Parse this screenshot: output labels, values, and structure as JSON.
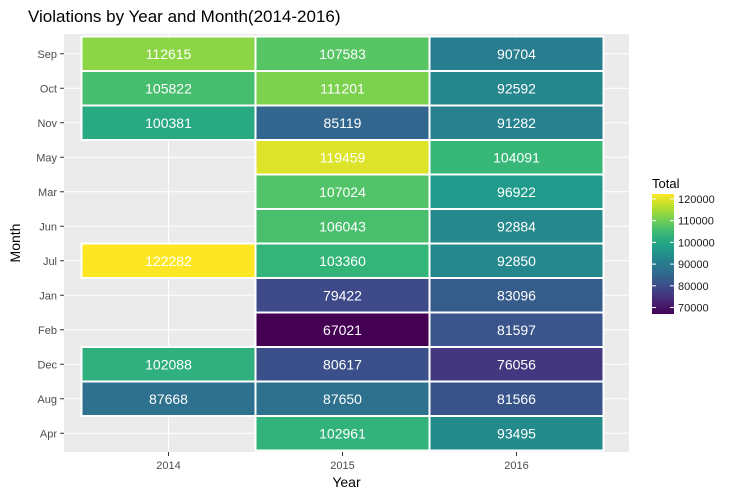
{
  "chart_data": {
    "type": "heatmap",
    "title": "Violations by Year and Month(2014-2016)",
    "xlabel": "Year",
    "ylabel": "Month",
    "x_categories": [
      "2014",
      "2015",
      "2016"
    ],
    "y_categories": [
      "Sep",
      "Oct",
      "Nov",
      "May",
      "Mar",
      "Jun",
      "Jul",
      "Jan",
      "Feb",
      "Dec",
      "Aug",
      "Apr"
    ],
    "values": [
      [
        112615,
        107583,
        90704
      ],
      [
        105822,
        111201,
        92592
      ],
      [
        100381,
        85119,
        91282
      ],
      [
        null,
        119459,
        104091
      ],
      [
        null,
        107024,
        96922
      ],
      [
        null,
        106043,
        92884
      ],
      [
        122282,
        103360,
        92850
      ],
      [
        null,
        79422,
        83096
      ],
      [
        null,
        67021,
        81597
      ],
      [
        102088,
        80617,
        76056
      ],
      [
        87668,
        87650,
        81566
      ],
      [
        null,
        102961,
        93495
      ]
    ],
    "color_scale": "viridis",
    "color_range": [
      67021,
      122282
    ],
    "grid": true,
    "legend": {
      "title": "Total",
      "position": "right",
      "ticks": [
        120000,
        110000,
        100000,
        90000,
        80000,
        70000
      ]
    }
  }
}
